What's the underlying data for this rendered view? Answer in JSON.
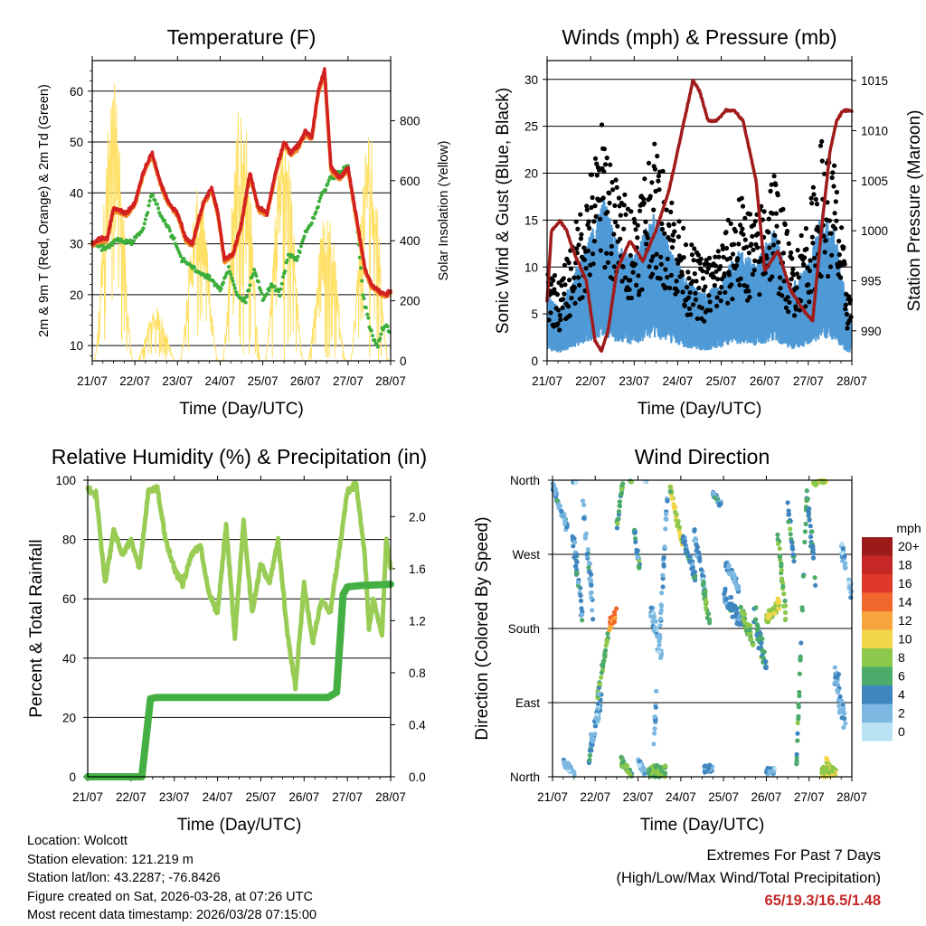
{
  "colors": {
    "temp2m": "#d32020",
    "temp9m": "#f08a24",
    "dewpoint": "#3cae3c",
    "solar": "#ffe066",
    "sonic": "#4f9ad6",
    "gust": "#000000",
    "pressure": "#a01c1c",
    "rh": "#99cc55",
    "precip": "#44b044",
    "extremes": "#c62828"
  },
  "chart_data": [
    {
      "id": "temperature",
      "type": "line",
      "title": "Temperature (F)",
      "xlabel": "Time (Day/UTC)",
      "ylabel": "2m & 9m T (Red, Orange) & 2m Td (Green)",
      "y2label": "Solar Insolation (Yellow)",
      "x_ticks": [
        "21/07",
        "22/07",
        "23/07",
        "24/07",
        "25/07",
        "26/07",
        "27/07",
        "28/07"
      ],
      "xlim": [
        0,
        7
      ],
      "ylim": [
        7,
        66
      ],
      "y2lim": [
        0,
        1000
      ],
      "y_ticks": [
        10,
        20,
        30,
        40,
        50,
        60
      ],
      "y2_ticks": [
        0,
        200,
        400,
        600,
        800
      ],
      "series": [
        {
          "name": "2m T",
          "x": [
            0,
            0.2,
            0.35,
            0.5,
            0.8,
            1.0,
            1.2,
            1.4,
            1.6,
            1.8,
            2.0,
            2.2,
            2.35,
            2.6,
            2.8,
            2.95,
            3.1,
            3.3,
            3.5,
            3.7,
            3.9,
            4.1,
            4.3,
            4.5,
            4.65,
            4.8,
            5.0,
            5.15,
            5.3,
            5.45,
            5.6,
            5.8,
            6.0,
            6.2,
            6.4,
            6.55,
            6.7,
            6.9,
            7.0
          ],
          "values": [
            30,
            31,
            31,
            37,
            36,
            38,
            44,
            48,
            42,
            38,
            36,
            31,
            30,
            38,
            41,
            36,
            27,
            28,
            34,
            44,
            37,
            36,
            44,
            50,
            48,
            49,
            52,
            51,
            60,
            64,
            45,
            43,
            45,
            35,
            25,
            22,
            21,
            20,
            21
          ]
        },
        {
          "name": "2m Td",
          "x": [
            0,
            0.3,
            0.6,
            0.9,
            1.2,
            1.4,
            1.6,
            1.9,
            2.1,
            2.4,
            2.6,
            2.8,
            3.0,
            3.2,
            3.4,
            3.6,
            3.8,
            4.0,
            4.2,
            4.4,
            4.6,
            4.8,
            5.0,
            5.2,
            5.4,
            5.6,
            5.8,
            6.0,
            6.2,
            6.35,
            6.5,
            6.6,
            6.7,
            6.8,
            6.9,
            7.0
          ],
          "values": [
            30,
            29,
            31,
            30,
            33,
            40,
            36,
            31,
            27,
            25,
            24,
            23,
            21,
            25,
            20,
            19,
            25,
            19,
            22,
            20,
            28,
            27,
            32,
            35,
            40,
            43,
            44,
            45,
            35,
            20,
            14,
            11,
            10,
            13,
            14,
            12
          ]
        }
      ],
      "solar_days": [
        0.5,
        1.5,
        2.5,
        3.5,
        4.5,
        5.5,
        6.5
      ],
      "solar_peaks": [
        930,
        180,
        580,
        920,
        800,
        520,
        780
      ]
    },
    {
      "id": "winds",
      "type": "scatter",
      "title": "Winds (mph) & Pressure (mb)",
      "xlabel": "Time (Day/UTC)",
      "ylabel": "Sonic Wind & Gust (Blue, Black)",
      "y2label": "Station Pressure (Maroon)",
      "x_ticks": [
        "21/07",
        "22/07",
        "23/07",
        "24/07",
        "25/07",
        "26/07",
        "27/07",
        "28/07"
      ],
      "xlim": [
        0,
        7
      ],
      "ylim": [
        0,
        32
      ],
      "y2lim": [
        987,
        1017
      ],
      "y_ticks": [
        0,
        5,
        10,
        15,
        20,
        25,
        30
      ],
      "y2_ticks": [
        990,
        995,
        1000,
        1005,
        1010,
        1015
      ],
      "gust_envelope": {
        "x": [
          0,
          0.3,
          0.7,
          1.0,
          1.3,
          1.6,
          2.0,
          2.4,
          2.8,
          3.2,
          3.6,
          4.0,
          4.4,
          4.8,
          5.2,
          5.6,
          6.0,
          6.3,
          6.6,
          6.9,
          7.0
        ],
        "values": [
          9,
          7,
          13,
          17,
          22,
          16,
          14,
          20,
          16,
          11,
          9,
          11,
          15,
          13,
          18,
          10,
          13,
          20,
          18,
          7,
          6
        ]
      },
      "pressure": {
        "x": [
          0,
          0.1,
          0.3,
          0.45,
          0.6,
          0.9,
          1.1,
          1.25,
          1.4,
          1.6,
          1.9,
          2.2,
          2.5,
          2.8,
          3.1,
          3.35,
          3.5,
          3.7,
          3.9,
          4.1,
          4.3,
          4.5,
          4.8,
          5.0,
          5.3,
          5.6,
          5.9,
          6.1,
          6.3,
          6.5,
          6.65,
          6.8,
          6.9,
          7.0
        ],
        "values": [
          993,
          1000,
          1001,
          1000,
          998,
          995,
          989,
          988,
          990,
          996,
          999,
          997,
          1000,
          1004,
          1010,
          1015,
          1014,
          1011,
          1011,
          1012,
          1012,
          1011,
          1005,
          996,
          998,
          994,
          992,
          991,
          1000,
          1008,
          1011,
          1012,
          1012,
          1012
        ]
      }
    },
    {
      "id": "humidity",
      "type": "line",
      "title": "Relative Humidity (%) & Precipitation (in)",
      "xlabel": "Time (Day/UTC)",
      "ylabel": "Percent & Total Rainfall",
      "x_ticks": [
        "21/07",
        "22/07",
        "23/07",
        "24/07",
        "25/07",
        "26/07",
        "27/07",
        "28/07"
      ],
      "xlim": [
        0,
        7
      ],
      "ylim": [
        0,
        100
      ],
      "y2lim": [
        0,
        2.28
      ],
      "y_ticks": [
        0,
        20,
        40,
        60,
        80,
        100
      ],
      "y2_ticks": [
        "0.0",
        "0.4",
        "0.8",
        "1.2",
        "1.6",
        "2.0"
      ],
      "series": [
        {
          "name": "RH",
          "x": [
            0,
            0.2,
            0.4,
            0.6,
            0.8,
            1.0,
            1.2,
            1.4,
            1.6,
            1.8,
            2.0,
            2.2,
            2.4,
            2.6,
            2.8,
            3.0,
            3.2,
            3.4,
            3.6,
            3.8,
            4.0,
            4.2,
            4.4,
            4.6,
            4.8,
            5.0,
            5.2,
            5.4,
            5.6,
            5.8,
            6.0,
            6.2,
            6.4,
            6.5,
            6.6,
            6.8,
            6.9,
            7.0
          ],
          "values": [
            97,
            95,
            65,
            83,
            75,
            80,
            70,
            96,
            98,
            80,
            70,
            65,
            75,
            78,
            62,
            55,
            85,
            47,
            86,
            55,
            72,
            65,
            80,
            50,
            30,
            65,
            45,
            60,
            55,
            75,
            96,
            99,
            75,
            50,
            60,
            48,
            80,
            70
          ]
        },
        {
          "name": "Total Precip",
          "x": [
            0,
            0.3,
            0.9,
            1.25,
            1.45,
            1.6,
            2.0,
            3.0,
            4.0,
            5.0,
            5.55,
            5.75,
            5.9,
            6.0,
            6.3,
            7.0
          ],
          "values": [
            0,
            0,
            0,
            0,
            0.6,
            0.61,
            0.61,
            0.61,
            0.61,
            0.61,
            0.61,
            0.65,
            1.4,
            1.46,
            1.47,
            1.48
          ]
        }
      ]
    },
    {
      "id": "direction",
      "type": "scatter",
      "title": "Wind Direction",
      "xlabel": "Time (Day/UTC)",
      "ylabel": "Direction (Colored By Speed)",
      "x_ticks": [
        "21/07",
        "22/07",
        "23/07",
        "24/07",
        "25/07",
        "26/07",
        "27/07",
        "28/07"
      ],
      "y_ticks": [
        "North",
        "West",
        "South",
        "East",
        "North"
      ],
      "xlim": [
        0,
        7
      ],
      "ylim": [
        0,
        360
      ],
      "legend_title": "mph",
      "legend_labels": [
        "20+",
        "18",
        "16",
        "14",
        "12",
        "10",
        "8",
        "6",
        "4",
        "2",
        "0"
      ],
      "legend_colors": [
        "#9b1b1b",
        "#c62828",
        "#e0392b",
        "#f0672d",
        "#f8a43c",
        "#f2d64a",
        "#8cc84c",
        "#4caa6a",
        "#3f86c0",
        "#7cb8e2",
        "#b9e2f5"
      ],
      "legend_position": "right"
    }
  ],
  "info": {
    "location": "Location: Wolcott",
    "elevation": "Station elevation: 121.219 m",
    "latlon": "Station lat/lon: 43.2287; -76.8426",
    "created": "Figure created on Sat, 2026-03-28, at 07:26 UTC",
    "latest": "Most recent data timestamp: 2026/03/28 07:15:00"
  },
  "extremes": {
    "line1": "Extremes For Past 7 Days",
    "line2": "(High/Low/Max Wind/Total Precipitation)",
    "values": "65/19.3/16.5/1.48"
  }
}
